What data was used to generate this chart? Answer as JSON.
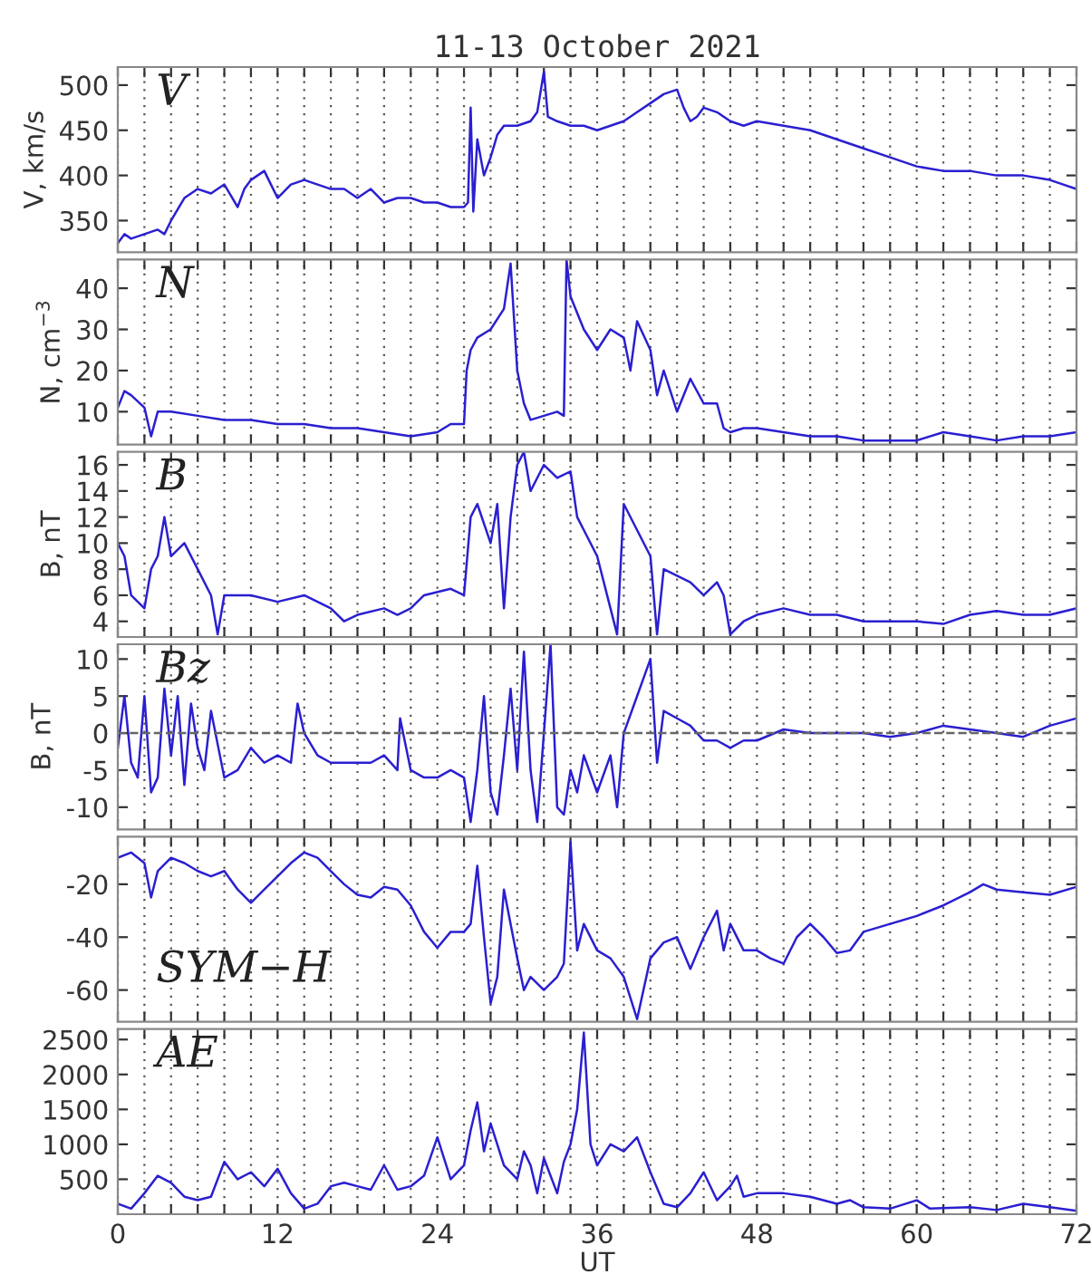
{
  "chart_data": [
    {
      "type": "line",
      "title": "11-13 October 2021",
      "ylabel": "V, km/s",
      "annotations": [
        "V"
      ],
      "color": "#2a1fd0",
      "grid": "x",
      "tick_labels": "y",
      "xlim": [
        0,
        72
      ],
      "ylim": [
        315,
        520
      ],
      "yticks": [
        350,
        400,
        450,
        500
      ],
      "xticks": [
        0,
        {
          "value": 2,
          "label": null
        },
        {
          "value": 4,
          "label": null
        },
        {
          "value": 6,
          "label": null
        },
        {
          "value": 8,
          "label": null
        },
        {
          "value": 10,
          "label": null
        },
        12,
        {
          "value": 14,
          "label": null
        },
        {
          "value": 16,
          "label": null
        },
        {
          "value": 18,
          "label": null
        },
        {
          "value": 20,
          "label": null
        },
        {
          "value": 22,
          "label": null
        },
        24,
        {
          "value": 26,
          "label": null
        },
        {
          "value": 28,
          "label": null
        },
        {
          "value": 30,
          "label": null
        },
        {
          "value": 32,
          "label": null
        },
        {
          "value": 34,
          "label": null
        },
        36,
        {
          "value": 38,
          "label": null
        },
        {
          "value": 40,
          "label": null
        },
        {
          "value": 42,
          "label": null
        },
        {
          "value": 44,
          "label": null
        },
        {
          "value": 46,
          "label": null
        },
        48,
        {
          "value": 50,
          "label": null
        },
        {
          "value": 52,
          "label": null
        },
        {
          "value": 54,
          "label": null
        },
        {
          "value": 56,
          "label": null
        },
        {
          "value": 58,
          "label": null
        },
        60,
        {
          "value": 62,
          "label": null
        },
        {
          "value": 64,
          "label": null
        },
        {
          "value": 66,
          "label": null
        },
        {
          "value": 68,
          "label": null
        },
        {
          "value": 70,
          "label": null
        },
        72
      ],
      "x": [
        0,
        0.5,
        1,
        2,
        3,
        3.5,
        4,
        5,
        6,
        7,
        8,
        9,
        9.5,
        10,
        11,
        11.5,
        12,
        13,
        14,
        15,
        16,
        17,
        18,
        19,
        20,
        21,
        22,
        23,
        24,
        25,
        26,
        26.3,
        26.5,
        26.7,
        27,
        27.5,
        28,
        28.5,
        29,
        30,
        31,
        31.5,
        32,
        32.3,
        33,
        34,
        35,
        36,
        37,
        38,
        39,
        40,
        41,
        42,
        42.5,
        43,
        43.5,
        44,
        45,
        46,
        47,
        48,
        50,
        52,
        54,
        56,
        58,
        60,
        62,
        64,
        66,
        68,
        70,
        71,
        72
      ],
      "values": [
        325,
        335,
        330,
        335,
        340,
        335,
        350,
        375,
        385,
        380,
        390,
        365,
        385,
        395,
        405,
        390,
        375,
        390,
        395,
        390,
        385,
        385,
        375,
        385,
        370,
        375,
        375,
        370,
        370,
        365,
        365,
        370,
        475,
        360,
        440,
        400,
        420,
        445,
        455,
        455,
        460,
        470,
        515,
        465,
        460,
        455,
        455,
        450,
        455,
        460,
        470,
        480,
        490,
        495,
        475,
        460,
        465,
        475,
        470,
        460,
        455,
        460,
        455,
        450,
        440,
        430,
        420,
        410,
        405,
        405,
        400,
        400,
        395,
        390,
        385
      ]
    },
    {
      "type": "line",
      "ylabel": "N, cm$^{−3}$",
      "annotations": [
        "N"
      ],
      "color": "#2a1fd0",
      "grid": "x",
      "tick_labels": "y",
      "xlim": [
        0,
        72
      ],
      "ylim": [
        2,
        47
      ],
      "yticks": [
        10,
        20,
        30,
        40
      ],
      "xticks": [
        0,
        {
          "value": 2,
          "label": null
        },
        {
          "value": 4,
          "label": null
        },
        {
          "value": 6,
          "label": null
        },
        {
          "value": 8,
          "label": null
        },
        {
          "value": 10,
          "label": null
        },
        12,
        {
          "value": 14,
          "label": null
        },
        {
          "value": 16,
          "label": null
        },
        {
          "value": 18,
          "label": null
        },
        {
          "value": 20,
          "label": null
        },
        {
          "value": 22,
          "label": null
        },
        24,
        {
          "value": 26,
          "label": null
        },
        {
          "value": 28,
          "label": null
        },
        {
          "value": 30,
          "label": null
        },
        {
          "value": 32,
          "label": null
        },
        {
          "value": 34,
          "label": null
        },
        36,
        {
          "value": 38,
          "label": null
        },
        {
          "value": 40,
          "label": null
        },
        {
          "value": 42,
          "label": null
        },
        {
          "value": 44,
          "label": null
        },
        {
          "value": 46,
          "label": null
        },
        48,
        {
          "value": 50,
          "label": null
        },
        {
          "value": 52,
          "label": null
        },
        {
          "value": 54,
          "label": null
        },
        {
          "value": 56,
          "label": null
        },
        {
          "value": 58,
          "label": null
        },
        60,
        {
          "value": 62,
          "label": null
        },
        {
          "value": 64,
          "label": null
        },
        {
          "value": 66,
          "label": null
        },
        {
          "value": 68,
          "label": null
        },
        {
          "value": 70,
          "label": null
        },
        72
      ],
      "x": [
        0,
        0.5,
        1,
        2,
        2.5,
        3,
        4,
        6,
        8,
        10,
        12,
        14,
        16,
        18,
        20,
        22,
        24,
        25,
        26,
        26.2,
        26.5,
        27,
        28,
        29,
        29.5,
        30,
        30.5,
        31,
        32,
        33,
        33.5,
        33.7,
        34,
        35,
        36,
        37,
        38,
        38.5,
        39,
        40,
        40.5,
        41,
        42,
        43,
        44,
        45,
        45.5,
        46,
        47,
        48,
        50,
        52,
        54,
        56,
        58,
        60,
        62,
        64,
        66,
        68,
        70,
        72
      ],
      "values": [
        11,
        15,
        14,
        11,
        4,
        10,
        10,
        9,
        8,
        8,
        7,
        7,
        6,
        6,
        5,
        4,
        5,
        7,
        7,
        20,
        25,
        28,
        30,
        35,
        46,
        20,
        12,
        8,
        9,
        10,
        9,
        47,
        38,
        30,
        25,
        30,
        28,
        20,
        32,
        25,
        14,
        20,
        10,
        18,
        12,
        12,
        6,
        5,
        6,
        6,
        5,
        4,
        4,
        3,
        3,
        3,
        5,
        4,
        3,
        4,
        4,
        5
      ]
    },
    {
      "type": "line",
      "ylabel": "B, nT",
      "annotations": [
        "B"
      ],
      "color": "#2a1fd0",
      "grid": "x",
      "tick_labels": "y",
      "xlim": [
        0,
        72
      ],
      "ylim": [
        2.8,
        17
      ],
      "yticks": [
        4,
        6,
        8,
        10,
        12,
        14,
        16
      ],
      "xticks": [
        0,
        {
          "value": 2,
          "label": null
        },
        {
          "value": 4,
          "label": null
        },
        {
          "value": 6,
          "label": null
        },
        {
          "value": 8,
          "label": null
        },
        {
          "value": 10,
          "label": null
        },
        12,
        {
          "value": 14,
          "label": null
        },
        {
          "value": 16,
          "label": null
        },
        {
          "value": 18,
          "label": null
        },
        {
          "value": 20,
          "label": null
        },
        {
          "value": 22,
          "label": null
        },
        24,
        {
          "value": 26,
          "label": null
        },
        {
          "value": 28,
          "label": null
        },
        {
          "value": 30,
          "label": null
        },
        {
          "value": 32,
          "label": null
        },
        {
          "value": 34,
          "label": null
        },
        36,
        {
          "value": 38,
          "label": null
        },
        {
          "value": 40,
          "label": null
        },
        {
          "value": 42,
          "label": null
        },
        {
          "value": 44,
          "label": null
        },
        {
          "value": 46,
          "label": null
        },
        48,
        {
          "value": 50,
          "label": null
        },
        {
          "value": 52,
          "label": null
        },
        {
          "value": 54,
          "label": null
        },
        {
          "value": 56,
          "label": null
        },
        {
          "value": 58,
          "label": null
        },
        60,
        {
          "value": 62,
          "label": null
        },
        {
          "value": 64,
          "label": null
        },
        {
          "value": 66,
          "label": null
        },
        {
          "value": 68,
          "label": null
        },
        {
          "value": 70,
          "label": null
        },
        72
      ],
      "x": [
        0,
        0.5,
        1,
        2,
        2.5,
        3,
        3.5,
        4,
        5,
        6,
        7,
        7.5,
        8,
        10,
        12,
        14,
        16,
        17,
        18,
        20,
        21,
        22,
        23,
        25,
        26,
        26.5,
        27,
        28,
        28.5,
        29,
        29.5,
        30,
        30.5,
        31,
        31.5,
        32,
        33,
        34,
        34.5,
        35,
        36,
        37,
        37.5,
        38,
        39,
        40,
        40.5,
        41,
        42,
        43,
        44,
        45,
        45.5,
        46,
        47,
        48,
        50,
        52,
        54,
        56,
        58,
        60,
        62,
        64,
        66,
        68,
        70,
        72
      ],
      "values": [
        10,
        9,
        6,
        5,
        8,
        9,
        12,
        9,
        10,
        8,
        6,
        3,
        6,
        6,
        5.5,
        6,
        5,
        4,
        4.5,
        5,
        4.5,
        5,
        6,
        6.5,
        6,
        12,
        13,
        10,
        13,
        5,
        12,
        16,
        17,
        14,
        15,
        16,
        15,
        15.5,
        12,
        11,
        9,
        5,
        3,
        13,
        11,
        9,
        3,
        8,
        7.5,
        7,
        6,
        7,
        6,
        3,
        4,
        4.5,
        5,
        4.5,
        4.5,
        4,
        4,
        4,
        3.8,
        4.5,
        4.8,
        4.5,
        4.5,
        5
      ]
    },
    {
      "type": "line",
      "ylabel": "B, nT",
      "annotations": [
        "Bz"
      ],
      "color": "#2a1fd0",
      "grid": "x",
      "tick_labels": "y",
      "xlim": [
        0,
        72
      ],
      "ylim": [
        -13,
        12
      ],
      "yticks": [
        -10,
        -5,
        0,
        5,
        10
      ],
      "ref_lines": [
        {
          "axis": "y",
          "value": 0,
          "color": "#666666",
          "line_style": "dashed"
        }
      ],
      "xticks": [
        0,
        {
          "value": 2,
          "label": null
        },
        {
          "value": 4,
          "label": null
        },
        {
          "value": 6,
          "label": null
        },
        {
          "value": 8,
          "label": null
        },
        {
          "value": 10,
          "label": null
        },
        12,
        {
          "value": 14,
          "label": null
        },
        {
          "value": 16,
          "label": null
        },
        {
          "value": 18,
          "label": null
        },
        {
          "value": 20,
          "label": null
        },
        {
          "value": 22,
          "label": null
        },
        24,
        {
          "value": 26,
          "label": null
        },
        {
          "value": 28,
          "label": null
        },
        {
          "value": 30,
          "label": null
        },
        {
          "value": 32,
          "label": null
        },
        {
          "value": 34,
          "label": null
        },
        36,
        {
          "value": 38,
          "label": null
        },
        {
          "value": 40,
          "label": null
        },
        {
          "value": 42,
          "label": null
        },
        {
          "value": 44,
          "label": null
        },
        {
          "value": 46,
          "label": null
        },
        48,
        {
          "value": 50,
          "label": null
        },
        {
          "value": 52,
          "label": null
        },
        {
          "value": 54,
          "label": null
        },
        {
          "value": 56,
          "label": null
        },
        {
          "value": 58,
          "label": null
        },
        60,
        {
          "value": 62,
          "label": null
        },
        {
          "value": 64,
          "label": null
        },
        {
          "value": 66,
          "label": null
        },
        {
          "value": 68,
          "label": null
        },
        {
          "value": 70,
          "label": null
        },
        72
      ],
      "x": [
        0,
        0.5,
        1,
        1.5,
        2,
        2.5,
        3,
        3.5,
        4,
        4.5,
        5,
        5.5,
        6,
        6.5,
        7,
        8,
        9,
        10,
        11,
        12,
        13,
        13.5,
        14,
        15,
        16,
        17,
        18,
        19,
        20,
        21,
        21.2,
        22,
        23,
        24,
        25,
        26,
        26.5,
        27,
        27.5,
        28,
        28.5,
        29,
        29.5,
        30,
        30.5,
        31,
        31.5,
        32,
        32.5,
        33,
        33.5,
        34,
        34.5,
        35,
        36,
        37,
        37.5,
        38,
        39,
        40,
        40.5,
        41,
        42,
        43,
        44,
        45,
        46,
        47,
        48,
        50,
        52,
        54,
        56,
        58,
        60,
        62,
        64,
        66,
        68,
        70,
        72
      ],
      "values": [
        -2,
        5,
        -4,
        -6,
        5,
        -8,
        -6,
        6,
        -3,
        5,
        -7,
        4,
        -2,
        -5,
        3,
        -6,
        -5,
        -2,
        -4,
        -3,
        -4,
        4,
        0,
        -3,
        -4,
        -4,
        -4,
        -4,
        -3,
        -5,
        2,
        -5,
        -6,
        -6,
        -5,
        -6,
        -12,
        -5,
        5,
        -8,
        -11,
        -3,
        6,
        -5,
        11,
        -5,
        -12,
        0,
        12,
        -10,
        -11,
        -5,
        -8,
        -3,
        -8,
        -3,
        -10,
        0,
        5,
        10,
        -4,
        3,
        2,
        1,
        -1,
        -1,
        -2,
        -1,
        -1,
        0.5,
        0,
        0,
        0,
        -0.5,
        0,
        1,
        0.5,
        0,
        -0.5,
        1,
        2
      ]
    },
    {
      "type": "line",
      "annotations": [
        "SYM−H"
      ],
      "color": "#2a1fd0",
      "grid": "x",
      "tick_labels": "y",
      "xlim": [
        0,
        72
      ],
      "ylim": [
        -72,
        -2
      ],
      "yticks": [
        -60,
        -40,
        -20
      ],
      "xticks": [
        0,
        {
          "value": 2,
          "label": null
        },
        {
          "value": 4,
          "label": null
        },
        {
          "value": 6,
          "label": null
        },
        {
          "value": 8,
          "label": null
        },
        {
          "value": 10,
          "label": null
        },
        12,
        {
          "value": 14,
          "label": null
        },
        {
          "value": 16,
          "label": null
        },
        {
          "value": 18,
          "label": null
        },
        {
          "value": 20,
          "label": null
        },
        {
          "value": 22,
          "label": null
        },
        24,
        {
          "value": 26,
          "label": null
        },
        {
          "value": 28,
          "label": null
        },
        {
          "value": 30,
          "label": null
        },
        {
          "value": 32,
          "label": null
        },
        {
          "value": 34,
          "label": null
        },
        36,
        {
          "value": 38,
          "label": null
        },
        {
          "value": 40,
          "label": null
        },
        {
          "value": 42,
          "label": null
        },
        {
          "value": 44,
          "label": null
        },
        {
          "value": 46,
          "label": null
        },
        48,
        {
          "value": 50,
          "label": null
        },
        {
          "value": 52,
          "label": null
        },
        {
          "value": 54,
          "label": null
        },
        {
          "value": 56,
          "label": null
        },
        {
          "value": 58,
          "label": null
        },
        60,
        {
          "value": 62,
          "label": null
        },
        {
          "value": 64,
          "label": null
        },
        {
          "value": 66,
          "label": null
        },
        {
          "value": 68,
          "label": null
        },
        {
          "value": 70,
          "label": null
        },
        72
      ],
      "x": [
        0,
        1,
        2,
        2.5,
        3,
        4,
        5,
        6,
        7,
        8,
        9,
        10,
        11,
        12,
        13,
        14,
        15,
        16,
        17,
        18,
        19,
        20,
        21,
        22,
        23,
        24,
        25,
        26,
        26.5,
        27,
        27.5,
        28,
        28.5,
        29,
        29.5,
        30,
        30.5,
        31,
        32,
        33,
        33.5,
        34,
        34.5,
        35,
        36,
        37,
        38,
        39,
        40,
        41,
        42,
        43,
        44,
        45,
        45.5,
        46,
        47,
        48,
        49,
        50,
        51,
        52,
        53,
        54,
        55,
        56,
        58,
        60,
        62,
        64,
        65,
        66,
        68,
        70,
        72
      ],
      "values": [
        -10,
        -8,
        -12,
        -25,
        -15,
        -10,
        -12,
        -15,
        -17,
        -15,
        -22,
        -27,
        -22,
        -17,
        -12,
        -8,
        -10,
        -15,
        -20,
        -24,
        -25,
        -21,
        -22,
        -28,
        -38,
        -44,
        -38,
        -38,
        -35,
        -13,
        -40,
        -65,
        -55,
        -22,
        -35,
        -48,
        -60,
        -55,
        -60,
        -55,
        -50,
        -4,
        -45,
        -35,
        -45,
        -48,
        -55,
        -71,
        -48,
        -42,
        -40,
        -52,
        -40,
        -30,
        -45,
        -35,
        -45,
        -45,
        -48,
        -50,
        -40,
        -35,
        -40,
        -46,
        -45,
        -38,
        -35,
        -32,
        -28,
        -23,
        -20,
        -22,
        -23,
        -24,
        -21
      ]
    },
    {
      "type": "line",
      "xlabel": "UT",
      "annotations": [
        "AE"
      ],
      "color": "#2a1fd0",
      "grid": "x",
      "xlim": [
        0,
        72
      ],
      "ylim": [
        0,
        2650
      ],
      "yticks": [
        500,
        1000,
        1500,
        2000,
        2500
      ],
      "xticks": [
        0,
        {
          "value": 2,
          "label": null
        },
        {
          "value": 4,
          "label": null
        },
        {
          "value": 6,
          "label": null
        },
        {
          "value": 8,
          "label": null
        },
        {
          "value": 10,
          "label": null
        },
        12,
        {
          "value": 14,
          "label": null
        },
        {
          "value": 16,
          "label": null
        },
        {
          "value": 18,
          "label": null
        },
        {
          "value": 20,
          "label": null
        },
        {
          "value": 22,
          "label": null
        },
        24,
        {
          "value": 26,
          "label": null
        },
        {
          "value": 28,
          "label": null
        },
        {
          "value": 30,
          "label": null
        },
        {
          "value": 32,
          "label": null
        },
        {
          "value": 34,
          "label": null
        },
        36,
        {
          "value": 38,
          "label": null
        },
        {
          "value": 40,
          "label": null
        },
        {
          "value": 42,
          "label": null
        },
        {
          "value": 44,
          "label": null
        },
        {
          "value": 46,
          "label": null
        },
        48,
        {
          "value": 50,
          "label": null
        },
        {
          "value": 52,
          "label": null
        },
        {
          "value": 54,
          "label": null
        },
        {
          "value": 56,
          "label": null
        },
        {
          "value": 58,
          "label": null
        },
        60,
        {
          "value": 62,
          "label": null
        },
        {
          "value": 64,
          "label": null
        },
        {
          "value": 66,
          "label": null
        },
        {
          "value": 68,
          "label": null
        },
        {
          "value": 70,
          "label": null
        },
        72
      ],
      "x": [
        0,
        1,
        2,
        3,
        4,
        5,
        6,
        7,
        8,
        9,
        10,
        11,
        12,
        13,
        14,
        15,
        16,
        17,
        18,
        19,
        20,
        21,
        22,
        23,
        24,
        25,
        26,
        26.5,
        27,
        27.5,
        28,
        29,
        30,
        30.5,
        31,
        31.5,
        32,
        33,
        33.5,
        34,
        34.5,
        35,
        35.5,
        36,
        37,
        38,
        39,
        40,
        41,
        42,
        43,
        44,
        45,
        46,
        46.5,
        47,
        48,
        50,
        52,
        54,
        55,
        56,
        58,
        60,
        61,
        64,
        66,
        68,
        70,
        72
      ],
      "values": [
        150,
        80,
        300,
        550,
        450,
        250,
        200,
        250,
        750,
        500,
        600,
        400,
        650,
        300,
        80,
        150,
        400,
        450,
        400,
        350,
        700,
        350,
        400,
        550,
        1100,
        500,
        700,
        1200,
        1600,
        900,
        1300,
        700,
        500,
        900,
        700,
        300,
        800,
        300,
        750,
        1000,
        1500,
        2600,
        1000,
        700,
        1000,
        900,
        1100,
        600,
        150,
        100,
        300,
        600,
        200,
        400,
        550,
        250,
        300,
        300,
        250,
        150,
        200,
        100,
        80,
        200,
        80,
        100,
        60,
        150,
        100,
        50
      ]
    }
  ]
}
